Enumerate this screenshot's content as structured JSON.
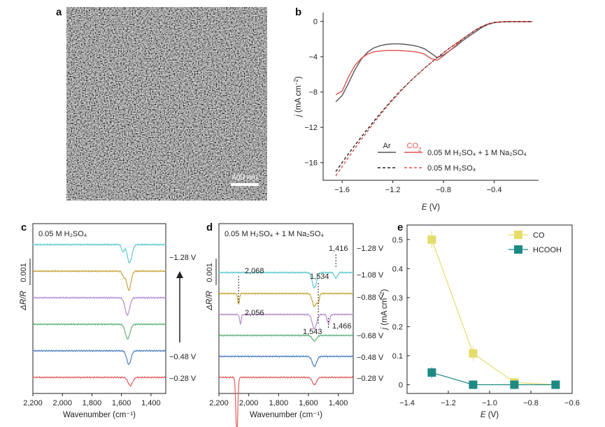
{
  "panel_labels": [
    "a",
    "b",
    "c",
    "d",
    "e"
  ],
  "panel_a": {
    "scale_bar": "400 nm"
  },
  "chart_data": [
    {
      "panel": "b",
      "type": "line",
      "xlabel_main": "E",
      "xlabel_unit": "(V)",
      "ylabel_main": "j",
      "ylabel_unit": "(mA cm",
      "ylabel_sup": "−2",
      "xlim": [
        -1.75,
        -0.05
      ],
      "ylim": [
        -18,
        1
      ],
      "xticks": [
        -1.6,
        -1.2,
        -0.8,
        -0.4
      ],
      "xtick_labels": [
        "−1.6",
        "−1.2",
        "−0.8",
        "−0.4"
      ],
      "yticks": [
        0,
        -4,
        -8,
        -12,
        -16
      ],
      "ytick_labels": [
        "0",
        "−4",
        "−8",
        "−12",
        "−16"
      ],
      "legend": {
        "col_ar": "Ar",
        "col_co2_base": "CO",
        "col_co2_sub": "2",
        "row1_label": "0.05 M H₂SO₄ + 1 M Na₂SO₄",
        "row2_label": "0.05 M H₂SO₄"
      },
      "series": [
        {
          "name": "Ar",
          "electrolyte": "0.05 M H₂SO₄ + 1 M Na₂SO₄",
          "color": "#555555",
          "dash": "solid",
          "x": [
            -1.65,
            -1.6,
            -1.55,
            -1.5,
            -1.45,
            -1.4,
            -1.35,
            -1.3,
            -1.25,
            -1.2,
            -1.15,
            -1.1,
            -1.05,
            -1.0,
            -0.95,
            -0.9,
            -0.85,
            -0.8,
            -0.75,
            -0.7,
            -0.65,
            -0.6,
            -0.55,
            -0.5,
            -0.45,
            -0.4,
            -0.35,
            -0.3,
            -0.25,
            -0.2,
            -0.15,
            -0.1
          ],
          "y": [
            -9.1,
            -8.4,
            -7.0,
            -5.5,
            -4.3,
            -3.5,
            -3.0,
            -2.75,
            -2.6,
            -2.55,
            -2.55,
            -2.6,
            -2.7,
            -2.85,
            -3.1,
            -3.6,
            -4.1,
            -3.8,
            -3.3,
            -2.8,
            -2.2,
            -1.7,
            -1.2,
            -0.7,
            -0.35,
            -0.15,
            -0.08,
            -0.05,
            -0.04,
            -0.03,
            -0.03,
            -0.03
          ]
        },
        {
          "name": "CO2",
          "electrolyte": "0.05 M H₂SO₄ + 1 M Na₂SO₄",
          "color": "#e0524f",
          "dash": "solid",
          "x": [
            -1.65,
            -1.6,
            -1.55,
            -1.5,
            -1.45,
            -1.4,
            -1.35,
            -1.3,
            -1.25,
            -1.2,
            -1.15,
            -1.1,
            -1.05,
            -1.0,
            -0.95,
            -0.9,
            -0.85,
            -0.8,
            -0.75,
            -0.7,
            -0.65,
            -0.6,
            -0.55,
            -0.5,
            -0.45,
            -0.4,
            -0.35,
            -0.3,
            -0.25,
            -0.2,
            -0.15,
            -0.1
          ],
          "y": [
            -8.3,
            -7.9,
            -6.3,
            -5.0,
            -4.2,
            -3.7,
            -3.45,
            -3.35,
            -3.3,
            -3.3,
            -3.3,
            -3.35,
            -3.4,
            -3.5,
            -3.7,
            -4.2,
            -4.4,
            -3.9,
            -3.3,
            -2.7,
            -2.0,
            -1.5,
            -1.0,
            -0.6,
            -0.3,
            -0.12,
            -0.05,
            -0.03,
            -0.02,
            -0.02,
            -0.02,
            -0.02
          ]
        },
        {
          "name": "Ar",
          "electrolyte": "0.05 M H₂SO₄",
          "color": "#222222",
          "dash": "dashed",
          "x": [
            -1.65,
            -1.55,
            -1.45,
            -1.35,
            -1.25,
            -1.15,
            -1.05,
            -0.95,
            -0.85,
            -0.75,
            -0.65,
            -0.55,
            -0.5,
            -0.45,
            -0.4,
            -0.35,
            -0.3,
            -0.2,
            -0.1
          ],
          "y": [
            -17.0,
            -15.0,
            -13.1,
            -11.3,
            -9.6,
            -8.0,
            -6.6,
            -5.3,
            -4.1,
            -3.0,
            -2.0,
            -1.0,
            -0.6,
            -0.3,
            -0.12,
            -0.05,
            -0.03,
            -0.02,
            -0.02
          ]
        },
        {
          "name": "CO2",
          "electrolyte": "0.05 M H₂SO₄",
          "color": "#e0524f",
          "dash": "dashed",
          "x": [
            -1.65,
            -1.55,
            -1.45,
            -1.35,
            -1.25,
            -1.15,
            -1.05,
            -0.95,
            -0.85,
            -0.75,
            -0.65,
            -0.55,
            -0.5,
            -0.45,
            -0.4,
            -0.35,
            -0.3,
            -0.2,
            -0.1
          ],
          "y": [
            -17.5,
            -15.4,
            -13.4,
            -11.5,
            -9.7,
            -8.1,
            -6.6,
            -5.3,
            -4.1,
            -3.0,
            -2.0,
            -1.0,
            -0.6,
            -0.3,
            -0.12,
            -0.05,
            -0.03,
            -0.02,
            -0.02
          ]
        }
      ]
    },
    {
      "panel": "c",
      "type": "line",
      "inset_label": "0.05 M H₂SO₄",
      "xlabel": "Wavenumber (cm⁻¹)",
      "ylabel": "ΔR/R",
      "scale_label": "0.001",
      "xlim": [
        2200,
        1300
      ],
      "xticks": [
        2200,
        2000,
        1800,
        1600,
        1400
      ],
      "xtick_labels": [
        "2,200",
        "2,000",
        "1,800",
        "1,600",
        "1,400"
      ],
      "potential_labels": [
        "−1.28 V",
        "−0.48 V",
        "−0.28 V"
      ],
      "series": [
        {
          "name": "−1.28 V",
          "color": "#5bc8cc",
          "offset": 5,
          "bands": [
            [
              1590,
              -0.4,
              12
            ],
            [
              1545,
              -1.0,
              22
            ]
          ]
        },
        {
          "name": "",
          "color": "#c8a43a",
          "offset": 4,
          "bands": [
            [
              1585,
              -0.3,
              14
            ],
            [
              1550,
              -1.05,
              20
            ]
          ]
        },
        {
          "name": "",
          "color": "#b58ad0",
          "offset": 3,
          "bands": [
            [
              1560,
              -0.95,
              22
            ]
          ]
        },
        {
          "name": "",
          "color": "#5fb27a",
          "offset": 2,
          "bands": [
            [
              1558,
              -0.8,
              22
            ]
          ]
        },
        {
          "name": "−0.48 V",
          "color": "#4d7fc2",
          "offset": 1,
          "bands": [
            [
              1550,
              -0.75,
              20
            ]
          ]
        },
        {
          "name": "−0.28 V",
          "color": "#e06060",
          "offset": 0,
          "bands": [
            [
              1540,
              -0.45,
              22
            ]
          ]
        }
      ]
    },
    {
      "panel": "d",
      "type": "line",
      "inset_label": "0.05 M H₂SO₄ + 1 M Na₂SO₄",
      "xlabel": "Wavenumber (cm⁻¹)",
      "ylabel": "ΔR/R",
      "scale_label": "0.001",
      "xlim": [
        2200,
        1300
      ],
      "xticks": [
        2200,
        2000,
        1800,
        1600,
        1400
      ],
      "xtick_labels": [
        "2,200",
        "2,000",
        "1,800",
        "1,600",
        "1,400"
      ],
      "potential_labels": [
        "−1.28 V",
        "−1.08 V",
        "−0.88 V",
        "−0.68 V",
        "−0.48 V",
        "−0.28 V"
      ],
      "annotations": [
        "2,068",
        "2,056",
        "1,534",
        "1,543",
        "1,416",
        "1,466"
      ],
      "series": [
        {
          "name": "−1.28 V",
          "color": "#5bc8cc",
          "offset": 5,
          "bands": [
            [
              1560,
              -0.85,
              20
            ],
            [
              1416,
              -0.3,
              14
            ]
          ]
        },
        {
          "name": "−1.08 V",
          "color": "#c8a43a",
          "offset": 4,
          "bands": [
            [
              2068,
              -0.6,
              8
            ],
            [
              1560,
              -0.7,
              20
            ],
            [
              1534,
              -0.4,
              10
            ]
          ]
        },
        {
          "name": "−0.88 V",
          "color": "#b58ad0",
          "offset": 3,
          "bands": [
            [
              2056,
              -0.5,
              8
            ],
            [
              1560,
              -0.8,
              20
            ],
            [
              1466,
              -0.5,
              12
            ]
          ]
        },
        {
          "name": "−0.68 V",
          "color": "#5fb27a",
          "offset": 2,
          "bands": [
            [
              1560,
              -0.3,
              20
            ]
          ]
        },
        {
          "name": "−0.48 V",
          "color": "#4d7fc2",
          "offset": 1,
          "bands": [
            [
              1560,
              -0.55,
              20
            ]
          ]
        },
        {
          "name": "−0.28 V",
          "color": "#e06060",
          "offset": 0,
          "bands": [
            [
              2080,
              -3.2,
              9
            ],
            [
              1560,
              -0.4,
              20
            ]
          ]
        }
      ]
    },
    {
      "panel": "e",
      "type": "line",
      "xlabel_main": "E",
      "xlabel_unit": "(V)",
      "ylabel_main": "j",
      "ylabel_unit": "(mA cm",
      "ylabel_sup": "−2",
      "xlim": [
        -1.4,
        -0.6
      ],
      "ylim": [
        -0.03,
        0.55
      ],
      "xticks": [
        -1.4,
        -1.2,
        -1.0,
        -0.8,
        -0.6
      ],
      "xtick_labels": [
        "−1.4",
        "−1.2",
        "−1.0",
        "−0.8",
        "−0.6"
      ],
      "yticks": [
        0,
        0.1,
        0.2,
        0.3,
        0.4,
        0.5
      ],
      "ytick_labels": [
        "0",
        "0.1",
        "0.2",
        "0.3",
        "0.4",
        "0.5"
      ],
      "legend_placement": "top-right",
      "series": [
        {
          "name": "CO",
          "color": "#e6dc6b",
          "x": [
            -1.28,
            -1.08,
            -0.88,
            -0.68
          ],
          "y": [
            0.5,
            0.108,
            0.008,
            0.0
          ],
          "err": [
            0.03,
            0.025,
            0.006,
            0.0
          ]
        },
        {
          "name": "HCOOH",
          "color": "#1f8a84",
          "x": [
            -1.28,
            -1.08,
            -0.88,
            -0.68
          ],
          "y": [
            0.042,
            0.0,
            0.0,
            0.0
          ],
          "err": [
            0.018,
            0.012,
            0.0,
            0.0
          ]
        }
      ]
    }
  ]
}
